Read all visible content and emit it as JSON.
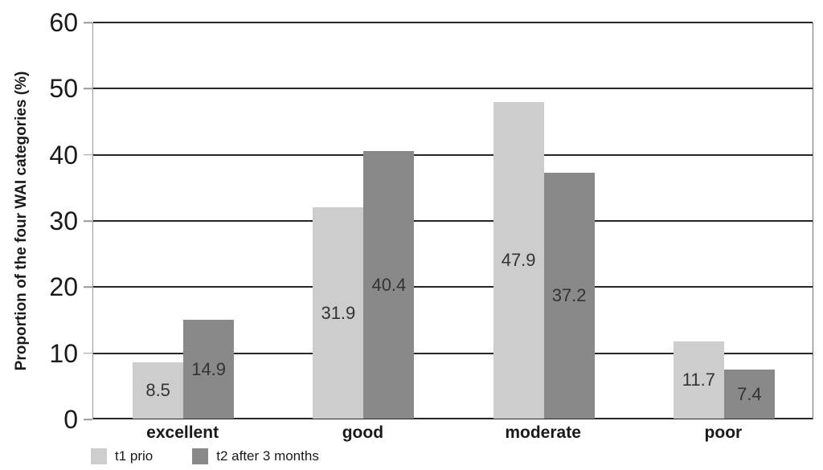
{
  "chart_data": {
    "type": "bar",
    "title": "",
    "xlabel": "",
    "ylabel": "Proportion of the four WAI categories (%)",
    "categories": [
      "excellent",
      "good",
      "moderate",
      "poor"
    ],
    "series": [
      {
        "name": "t1 prio",
        "color": "#cdcdcd",
        "values": [
          8.5,
          31.9,
          47.9,
          11.7
        ]
      },
      {
        "name": "t2 after 3 months",
        "color": "#898989",
        "values": [
          14.9,
          40.4,
          37.2,
          7.4
        ]
      }
    ],
    "ylim": [
      0,
      60
    ],
    "ytick_step": 10,
    "ytick_labels": [
      "0",
      "10",
      "20",
      "30",
      "40",
      "50",
      "60"
    ],
    "grid": "horizontal",
    "legend_position": "bottom-left",
    "value_label_position": "center",
    "value_label_decimals": 1
  },
  "colors": {
    "background": "#ffffff",
    "gridline": "#262626",
    "axis_line": "#999999",
    "tick_text": "#1a1a1a",
    "category_text": "#1a1a1a",
    "value_label_text": "#333333",
    "series_light": "#cdcdcd",
    "series_dark": "#898989"
  }
}
